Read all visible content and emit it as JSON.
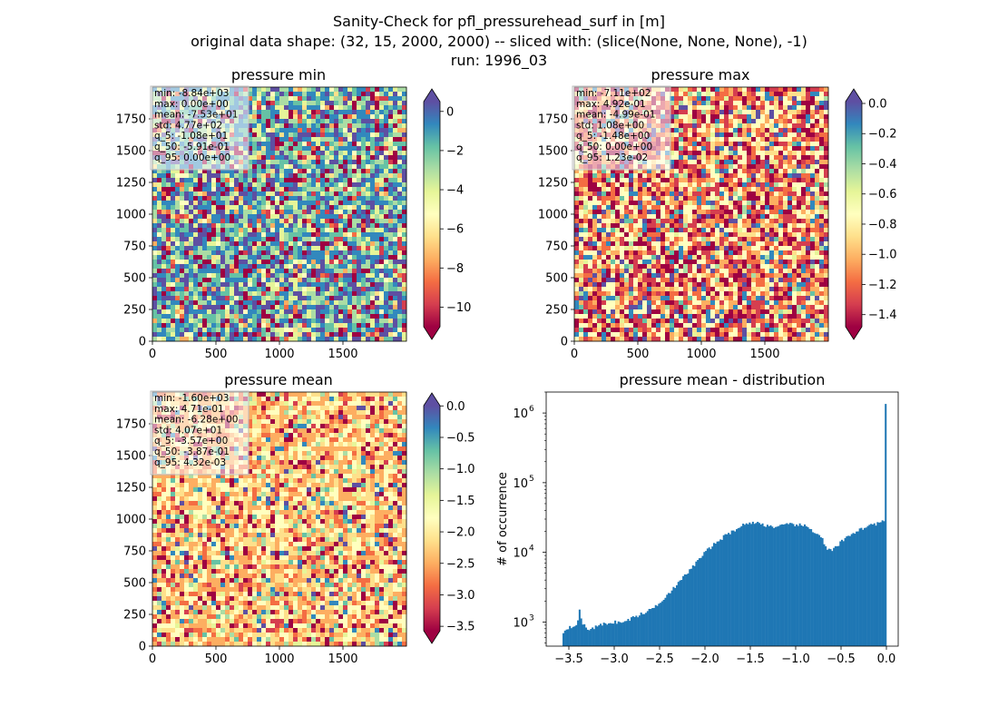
{
  "suptitle": [
    "Sanity-Check for pfl_pressurehead_surf in [m]",
    "original data shape: (32, 15, 2000, 2000) -- sliced with: (slice(None, None, None), -1)",
    "run: 1996_03"
  ],
  "colors": {
    "spectral": [
      "#9e0142",
      "#d53e4f",
      "#f46d43",
      "#fdae61",
      "#fee08b",
      "#ffffbf",
      "#e6f598",
      "#abdda4",
      "#66c2a5",
      "#3288bd",
      "#5e4fa2"
    ],
    "hist_bar": "#1f77b4"
  },
  "chart_data": [
    {
      "type": "heatmap",
      "title": "pressure min",
      "colormap": "Spectral",
      "extend": "both",
      "xlim": [
        0,
        2000
      ],
      "ylim": [
        0,
        2000
      ],
      "x_ticks": [
        "0",
        "500",
        "1000",
        "1500"
      ],
      "y_ticks": [
        "0",
        "250",
        "500",
        "750",
        "1000",
        "1250",
        "1500",
        "1750"
      ],
      "cbar_range": [
        -11,
        0.5
      ],
      "cbar_ticks": [
        {
          "v": 0,
          "label": "0"
        },
        {
          "v": -2,
          "label": "−2"
        },
        {
          "v": -4,
          "label": "−4"
        },
        {
          "v": -6,
          "label": "−6"
        },
        {
          "v": -8,
          "label": "−8"
        },
        {
          "v": -10,
          "label": "−10"
        }
      ],
      "stats": [
        "min: -8.84e+03",
        "max: 0.00e+00",
        "mean: -7.53e+01",
        "std: 4.77e+02",
        "q_5: -1.08e+01",
        "q_50: -5.91e-01",
        "q_95: 0.00e+00"
      ]
    },
    {
      "type": "heatmap",
      "title": "pressure max",
      "colormap": "Spectral",
      "extend": "both",
      "xlim": [
        0,
        2000
      ],
      "ylim": [
        0,
        2000
      ],
      "x_ticks": [
        "0",
        "500",
        "1000",
        "1500"
      ],
      "y_ticks": [
        "0",
        "250",
        "500",
        "750",
        "1000",
        "1250",
        "1500",
        "1750"
      ],
      "cbar_range": [
        -1.48,
        0.012
      ],
      "cbar_ticks": [
        {
          "v": 0,
          "label": "0.0"
        },
        {
          "v": -0.2,
          "label": "−0.2"
        },
        {
          "v": -0.4,
          "label": "−0.4"
        },
        {
          "v": -0.6,
          "label": "−0.6"
        },
        {
          "v": -0.8,
          "label": "−0.8"
        },
        {
          "v": -1.0,
          "label": "−1.0"
        },
        {
          "v": -1.2,
          "label": "−1.2"
        },
        {
          "v": -1.4,
          "label": "−1.4"
        }
      ],
      "stats": [
        "min: -7.11e+02",
        "max: 4.92e-01",
        "mean: -4.99e-01",
        "std: 1.08e+00",
        "q_5: -1.48e+00",
        "q_50: 0.00e+00",
        "q_95: 1.23e-02"
      ]
    },
    {
      "type": "heatmap",
      "title": "pressure mean",
      "colormap": "Spectral",
      "extend": "both",
      "xlim": [
        0,
        2000
      ],
      "ylim": [
        0,
        2000
      ],
      "x_ticks": [
        "0",
        "500",
        "1000",
        "1500"
      ],
      "y_ticks": [
        "0",
        "250",
        "500",
        "750",
        "1000",
        "1250",
        "1500",
        "1750"
      ],
      "cbar_range": [
        -3.57,
        0.004
      ],
      "cbar_ticks": [
        {
          "v": 0,
          "label": "0.0"
        },
        {
          "v": -0.5,
          "label": "−0.5"
        },
        {
          "v": -1.0,
          "label": "−1.0"
        },
        {
          "v": -1.5,
          "label": "−1.5"
        },
        {
          "v": -2.0,
          "label": "−2.0"
        },
        {
          "v": -2.5,
          "label": "−2.5"
        },
        {
          "v": -3.0,
          "label": "−3.0"
        },
        {
          "v": -3.5,
          "label": "−3.5"
        }
      ],
      "stats": [
        "min: -1.60e+03",
        "max: 4.71e-01",
        "mean: -6.28e+00",
        "std: 4.07e+01",
        "q_5: -3.57e+00",
        "q_50: -3.87e-01",
        "q_95: 4.32e-03"
      ]
    },
    {
      "type": "bar",
      "title": "pressure mean - distribution",
      "ylabel": "# of occurrence",
      "xlabel": "",
      "yscale": "log",
      "xlim": [
        -3.75,
        0.13
      ],
      "ylim": [
        450,
        2000000
      ],
      "x_ticks": [
        {
          "v": -3.5,
          "label": "−3.5"
        },
        {
          "v": -3.0,
          "label": "−3.0"
        },
        {
          "v": -2.5,
          "label": "−2.5"
        },
        {
          "v": -2.0,
          "label": "−2.0"
        },
        {
          "v": -1.5,
          "label": "−1.5"
        },
        {
          "v": -1.0,
          "label": "−1.0"
        },
        {
          "v": -0.5,
          "label": "−0.5"
        },
        {
          "v": 0.0,
          "label": "0.0"
        }
      ],
      "y_ticks": [
        {
          "v": 1000,
          "base": "10",
          "exp": "3"
        },
        {
          "v": 10000,
          "base": "10",
          "exp": "4"
        },
        {
          "v": 100000,
          "base": "10",
          "exp": "5"
        },
        {
          "v": 1000000,
          "base": "10",
          "exp": "6"
        }
      ],
      "bin_range": [
        -3.57,
        0.0
      ],
      "bins": 200,
      "profile": [
        [
          -3.57,
          700
        ],
        [
          -3.5,
          850
        ],
        [
          -3.45,
          880
        ],
        [
          -3.4,
          1000
        ],
        [
          -3.38,
          1650
        ],
        [
          -3.36,
          1000
        ],
        [
          -3.3,
          780
        ],
        [
          -3.2,
          850
        ],
        [
          -3.1,
          950
        ],
        [
          -3.0,
          1000
        ],
        [
          -2.9,
          980
        ],
        [
          -2.8,
          1150
        ],
        [
          -2.7,
          1300
        ],
        [
          -2.6,
          1500
        ],
        [
          -2.5,
          1900
        ],
        [
          -2.4,
          2600
        ],
        [
          -2.3,
          3500
        ],
        [
          -2.2,
          5000
        ],
        [
          -2.1,
          7000
        ],
        [
          -2.0,
          10000
        ],
        [
          -1.9,
          13000
        ],
        [
          -1.8,
          16500
        ],
        [
          -1.7,
          20000
        ],
        [
          -1.6,
          24000
        ],
        [
          -1.5,
          27000
        ],
        [
          -1.4,
          26000
        ],
        [
          -1.3,
          24000
        ],
        [
          -1.2,
          23000
        ],
        [
          -1.1,
          25000
        ],
        [
          -1.0,
          25000
        ],
        [
          -0.9,
          24000
        ],
        [
          -0.8,
          20000
        ],
        [
          -0.72,
          17000
        ],
        [
          -0.66,
          11000
        ],
        [
          -0.6,
          10500
        ],
        [
          -0.5,
          14000
        ],
        [
          -0.4,
          18000
        ],
        [
          -0.3,
          21000
        ],
        [
          -0.2,
          24000
        ],
        [
          -0.1,
          26000
        ],
        [
          -0.03,
          28000
        ],
        [
          -0.005,
          30000
        ],
        [
          0.0,
          1350000
        ]
      ]
    }
  ]
}
